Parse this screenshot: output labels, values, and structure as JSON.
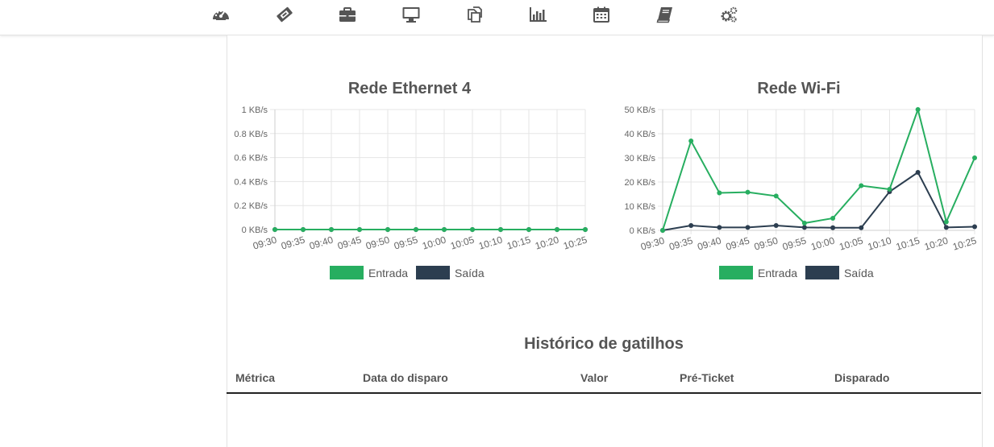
{
  "nav": {
    "items": [
      {
        "icon": "dashboard-icon"
      },
      {
        "icon": "ticket-icon"
      },
      {
        "icon": "briefcase-icon"
      },
      {
        "icon": "monitor-icon"
      },
      {
        "icon": "copy-icon"
      },
      {
        "icon": "bar-chart-icon"
      },
      {
        "icon": "calendar-icon"
      },
      {
        "icon": "book-icon"
      },
      {
        "icon": "cogs-icon"
      }
    ]
  },
  "colors": {
    "entrada": "#27ae60",
    "saida": "#2c3e50"
  },
  "chart_data": [
    {
      "type": "line",
      "title": "Rede Ethernet 4",
      "x": [
        "09:30",
        "09:35",
        "09:40",
        "09:45",
        "09:50",
        "09:55",
        "10:00",
        "10:05",
        "10:10",
        "10:15",
        "10:20",
        "10:25"
      ],
      "y_ticks": [
        "0 KB/s",
        "0.2 KB/s",
        "0.4 KB/s",
        "0.6 KB/s",
        "0.8 KB/s",
        "1 KB/s"
      ],
      "ylim": [
        0,
        1
      ],
      "series": [
        {
          "name": "Entrada",
          "values": [
            0,
            0,
            0,
            0,
            0,
            0,
            0,
            0,
            0,
            0,
            0,
            0
          ]
        },
        {
          "name": "Saída",
          "values": [
            0,
            0,
            0,
            0,
            0,
            0,
            0,
            0,
            0,
            0,
            0,
            0
          ]
        }
      ],
      "grid": true,
      "legend": "bottom"
    },
    {
      "type": "line",
      "title": "Rede Wi-Fi",
      "x": [
        "09:30",
        "09:35",
        "09:40",
        "09:45",
        "09:50",
        "09:55",
        "10:00",
        "10:05",
        "10:10",
        "10:15",
        "10:20",
        "10:25"
      ],
      "y_ticks": [
        "0 KB/s",
        "10 KB/s",
        "20 KB/s",
        "30 KB/s",
        "40 KB/s",
        "50 KB/s"
      ],
      "ylim": [
        0,
        50
      ],
      "series": [
        {
          "name": "Entrada",
          "values": [
            0,
            37,
            15.5,
            15.8,
            14.2,
            3,
            5,
            18.5,
            17,
            50,
            3.5,
            30
          ]
        },
        {
          "name": "Saída",
          "values": [
            0,
            2,
            1.2,
            1.2,
            2,
            1.2,
            1.1,
            1.1,
            16,
            24,
            1.2,
            1.5
          ]
        }
      ],
      "grid": true,
      "legend": "bottom"
    }
  ],
  "history": {
    "title": "Histórico de gatilhos",
    "columns": [
      "Métrica",
      "Data do disparo",
      "Valor",
      "Pré-Ticket",
      "Disparado"
    ]
  }
}
